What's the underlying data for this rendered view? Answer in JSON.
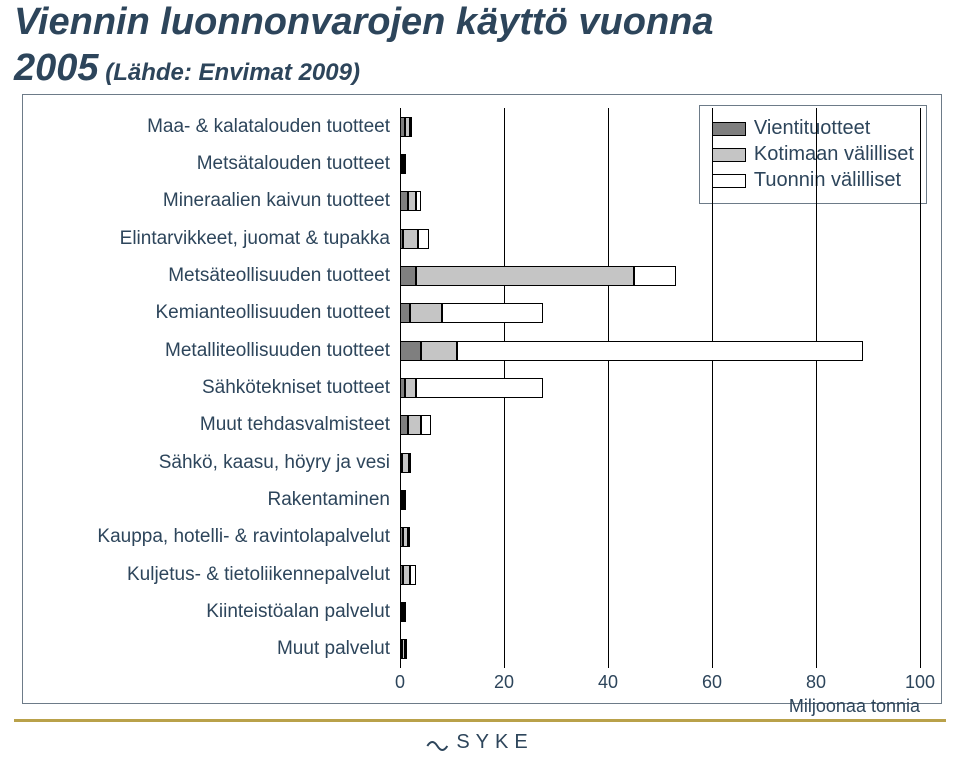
{
  "title_main": "Viennin luonnonvarojen käyttö vuonna",
  "title_sub_year": "2005",
  "title_sub_source": " (Lähde: Envimat 2009)",
  "title_color": "#2d455b",
  "chart": {
    "type": "bar",
    "orientation": "horizontal",
    "stacked": true,
    "frame_border_color": "#6d7b88",
    "background_color": "#ffffff",
    "grid_color": "#000000",
    "text_color": "#2d455b",
    "xlim": [
      0,
      100
    ],
    "xtick_step": 20,
    "xticks": [
      0,
      20,
      40,
      60,
      80,
      100
    ],
    "x_axis_label": "Miljoonaa tonnia",
    "label_fontsize": 19,
    "tick_fontsize": 18,
    "categories": [
      "Maa- & kalatalouden tuotteet",
      "Metsätalouden tuotteet",
      "Mineraalien kaivun tuotteet",
      "Elintarvikkeet, juomat & tupakka",
      "Metsäteollisuuden tuotteet",
      "Kemianteollisuuden tuotteet",
      "Metalliteollisuuden tuotteet",
      "Sähkötekniset tuotteet",
      "Muut tehdasvalmisteet",
      "Sähkö, kaasu, höyry ja vesi",
      "Rakentaminen",
      "Kauppa, hotelli- & ravintolapalvelut",
      "Kuljetus- & tietoliikennepalvelut",
      "Kiinteistöalan palvelut",
      "Muut palvelut"
    ],
    "series": [
      {
        "name": "Vientituotteet",
        "color": "#7f7f7f"
      },
      {
        "name": "Kotimaan välilliset",
        "color": "#c5c5c5"
      },
      {
        "name": "Tuonnin välilliset",
        "color": "#ffffff"
      }
    ],
    "values": [
      [
        1.0,
        1.0,
        0.4
      ],
      [
        0.2,
        0.2,
        0.1
      ],
      [
        1.5,
        1.5,
        1.0
      ],
      [
        0.5,
        3.0,
        2.0
      ],
      [
        3.0,
        42.0,
        8.0
      ],
      [
        2.0,
        6.0,
        19.5
      ],
      [
        4.0,
        7.0,
        78.0
      ],
      [
        1.0,
        2.0,
        24.5
      ],
      [
        1.5,
        2.5,
        2.0
      ],
      [
        0.2,
        1.4,
        0.2
      ],
      [
        0.2,
        0.4,
        0.3
      ],
      [
        0.5,
        1.0,
        0.5
      ],
      [
        0.5,
        1.5,
        1.0
      ],
      [
        0.0,
        0.1,
        0.05
      ],
      [
        0.2,
        0.5,
        0.4
      ]
    ],
    "legend": {
      "position": "top-right",
      "border_color": "#6d7b88",
      "fontsize": 20
    }
  },
  "footer": {
    "rule_color": "#b9a14a",
    "logo_text": "SYKE",
    "logo_color": "#2d455b"
  }
}
